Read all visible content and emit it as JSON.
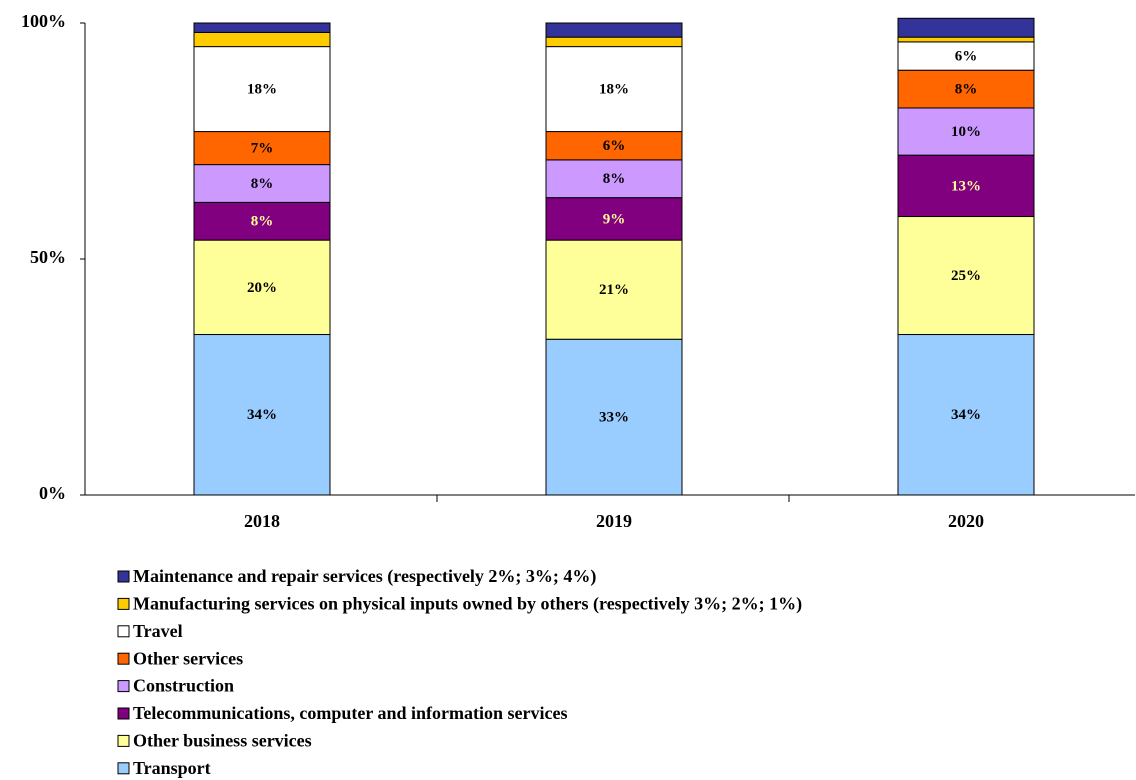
{
  "chart_data": {
    "type": "stacked_bar",
    "categories": [
      "2018",
      "2019",
      "2020"
    ],
    "ylim": [
      0,
      100
    ],
    "yticks": [
      {
        "value": 0,
        "label": "0%"
      },
      {
        "value": 50,
        "label": "50%"
      },
      {
        "value": 100,
        "label": "100%"
      }
    ],
    "series": [
      {
        "name": "Transport",
        "color": "#99ccff",
        "values": [
          34,
          33,
          34
        ],
        "value_labels": [
          "34%",
          "33%",
          "34%"
        ],
        "label_color": "#000000"
      },
      {
        "name": "Other business services",
        "color": "#ffff99",
        "values": [
          20,
          21,
          25
        ],
        "value_labels": [
          "20%",
          "21%",
          "25%"
        ],
        "label_color": "#000000"
      },
      {
        "name": "Telecommunications, computer and information services",
        "color": "#800080",
        "values": [
          8,
          9,
          13
        ],
        "value_labels": [
          "8%",
          "9%",
          "13%"
        ],
        "label_color": "#ffff99"
      },
      {
        "name": "Construction",
        "color": "#cc99ff",
        "values": [
          8,
          8,
          10
        ],
        "value_labels": [
          "8%",
          "8%",
          "10%"
        ],
        "label_color": "#000000"
      },
      {
        "name": "Other services",
        "color": "#ff6600",
        "values": [
          7,
          6,
          8
        ],
        "value_labels": [
          "7%",
          "6%",
          "8%"
        ],
        "label_color": "#000000"
      },
      {
        "name": "Travel",
        "color": "#ffffff",
        "values": [
          18,
          18,
          6
        ],
        "value_labels": [
          "18%",
          "18%",
          "6%"
        ],
        "label_color": "#000000"
      },
      {
        "name": "Manufacturing services on physical inputs owned by others (respectively 3%; 2%; 1%)",
        "color": "#ffcc00",
        "values": [
          3,
          2,
          1
        ]
      },
      {
        "name": "Maintenance and repair services (respectively 2%; 3%; 4%)",
        "color": "#333399",
        "values": [
          2,
          3,
          4
        ]
      }
    ],
    "legend": "bottom"
  }
}
